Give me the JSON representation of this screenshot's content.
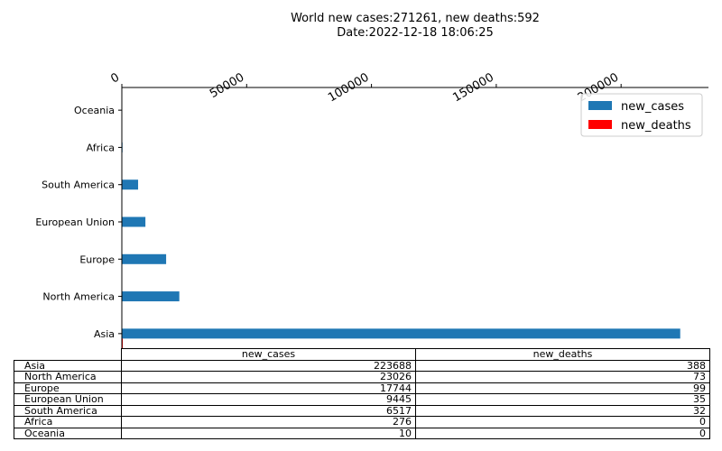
{
  "chart_data": {
    "type": "bar",
    "orientation": "horizontal",
    "title_line1": "World new cases:271261, new deaths:592",
    "title_line2": "Date:2022-12-18 18:06:25",
    "categories": [
      "Asia",
      "North America",
      "Europe",
      "European Union",
      "South America",
      "Africa",
      "Oceania"
    ],
    "series": [
      {
        "name": "new_cases",
        "color": "#1f77b4",
        "values": [
          223688,
          23026,
          17744,
          9445,
          6517,
          276,
          10
        ]
      },
      {
        "name": "new_deaths",
        "color": "#ff0000",
        "values": [
          388,
          73,
          99,
          35,
          32,
          0,
          0
        ]
      }
    ],
    "xlim": [
      0,
      235000
    ],
    "xticks": [
      0,
      50000,
      100000,
      150000,
      200000
    ],
    "xtick_labels": [
      "0",
      "50000",
      "100000",
      "150000",
      "200000"
    ],
    "xaxis_position": "top",
    "legend_position": "top-right",
    "table": {
      "columns": [
        "new_cases",
        "new_deaths"
      ],
      "rows": [
        {
          "label": "Asia",
          "values": [
            "223688",
            "388"
          ]
        },
        {
          "label": "North America",
          "values": [
            "23026",
            "73"
          ]
        },
        {
          "label": "Europe",
          "values": [
            "17744",
            "99"
          ]
        },
        {
          "label": "European Union",
          "values": [
            "9445",
            "35"
          ]
        },
        {
          "label": "South America",
          "values": [
            "6517",
            "32"
          ]
        },
        {
          "label": "Africa",
          "values": [
            "276",
            "0"
          ]
        },
        {
          "label": "Oceania",
          "values": [
            "10",
            "0"
          ]
        }
      ]
    }
  }
}
